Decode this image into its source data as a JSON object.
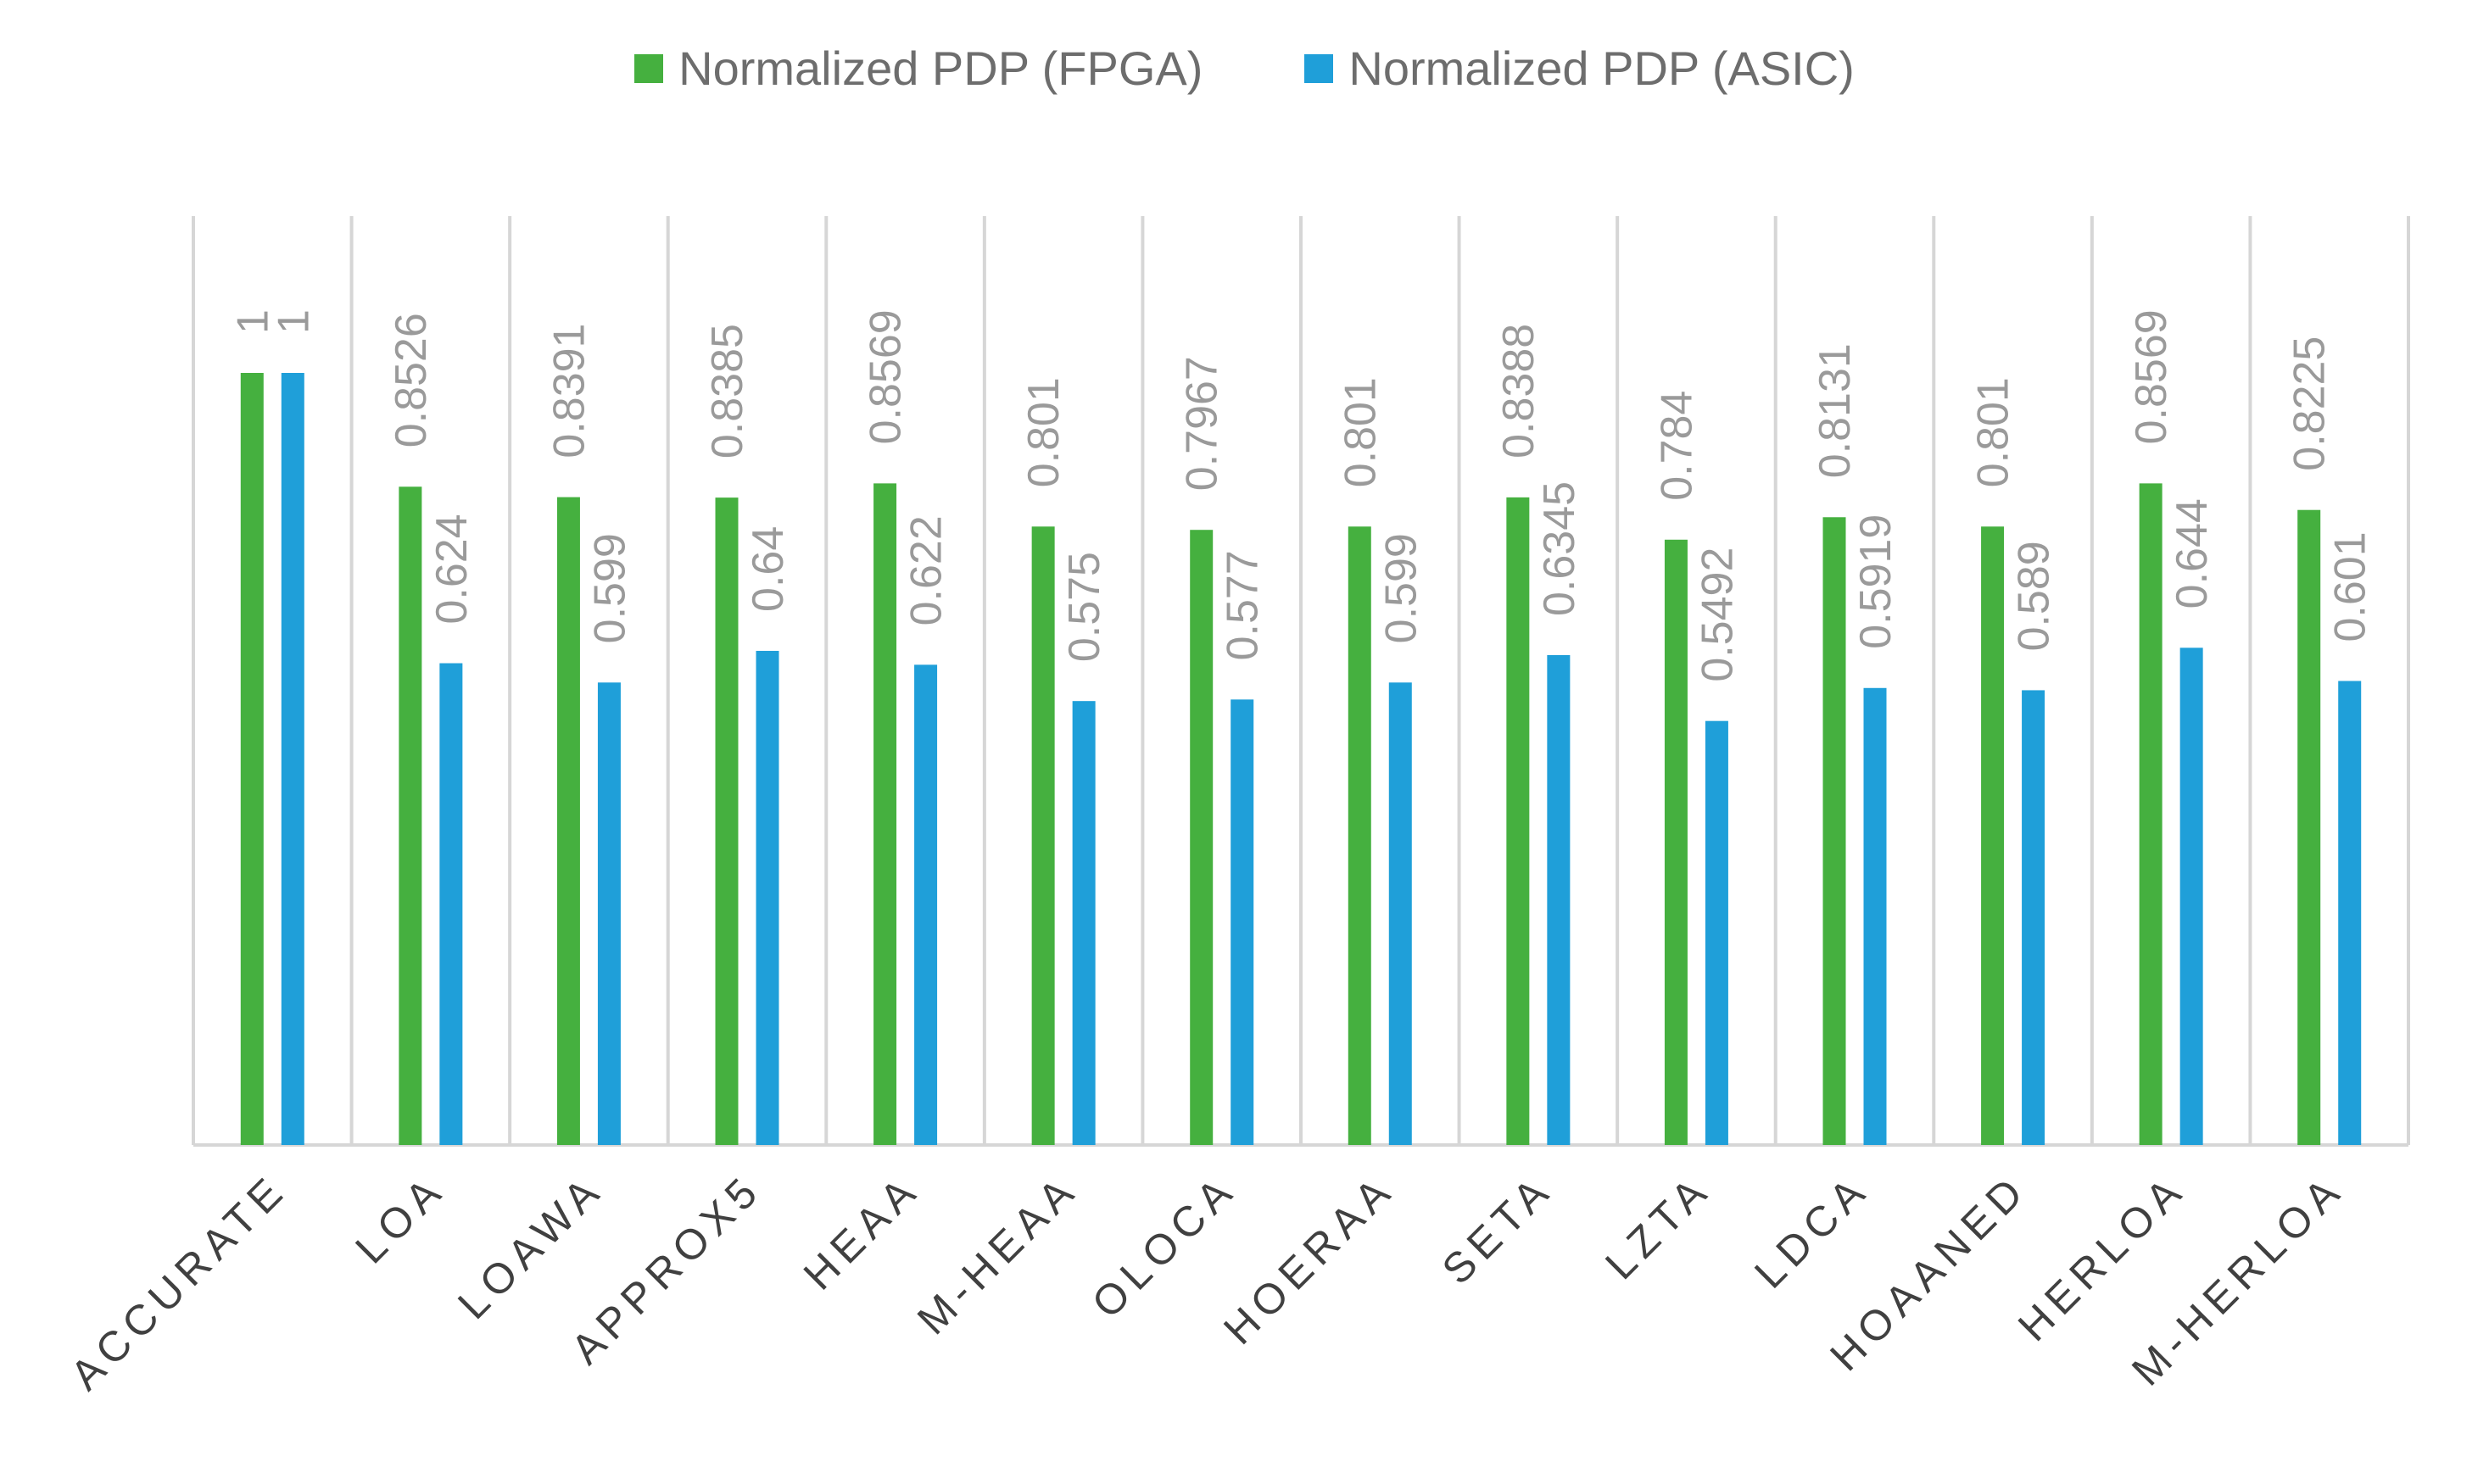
{
  "chart_data": {
    "type": "bar",
    "title": "",
    "xlabel": "",
    "ylabel": "",
    "ylim": [
      0,
      1.2
    ],
    "grid": "vertical separators",
    "legend": "top-center",
    "categories": [
      "ACCURATE",
      "LOA",
      "LOAWA",
      "APPROX5",
      "HEAA",
      "M-HEAA",
      "OLOCA",
      "HOERAA",
      "SETA",
      "LZTA",
      "LDCA",
      "HOAANED",
      "HERLOA",
      "M-HERLOA"
    ],
    "series": [
      {
        "name": "Normalized PDP (FPGA)",
        "color": "#45b03f",
        "values": [
          1,
          0.8526,
          0.8391,
          0.8385,
          0.8569,
          0.801,
          0.7967,
          0.801,
          0.8388,
          0.784,
          0.8131,
          0.801,
          0.8569,
          0.8225
        ],
        "labels": [
          "1",
          "0.8526",
          "0.8391",
          "0.8385",
          "0.8569",
          "0.801",
          "0.7967",
          "0.801",
          "0.8388",
          "0.784",
          "0.8131",
          "0.801",
          "0.8569",
          "0.8225"
        ]
      },
      {
        "name": "Normalized PDP (ASIC)",
        "color": "#1f9fd9",
        "values": [
          1,
          0.624,
          0.599,
          0.64,
          0.622,
          0.575,
          0.577,
          0.599,
          0.6345,
          0.5492,
          0.5919,
          0.589,
          0.644,
          0.601
        ],
        "labels": [
          "1",
          "0.624",
          "0.599",
          "0.64",
          "0.622",
          "0.575",
          "0.577",
          "0.599",
          "0.6345",
          "0.5492",
          "0.5919",
          "0.589",
          "0.644",
          "0.601"
        ]
      }
    ]
  }
}
